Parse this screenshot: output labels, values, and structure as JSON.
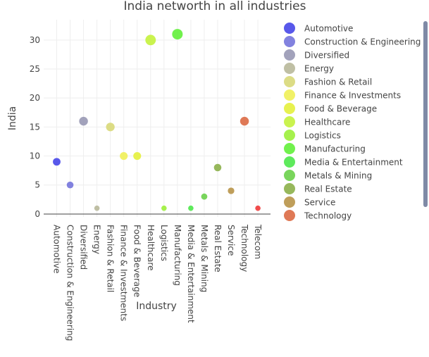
{
  "chart_data": {
    "type": "scatter",
    "title": "India networth in all industries",
    "xlabel": "Industry",
    "ylabel": "India",
    "ylim": [
      -0.5,
      33.5
    ],
    "yticks": [
      0,
      5,
      10,
      15,
      20,
      25,
      30
    ],
    "grid": true,
    "legend_position": "right",
    "categories": [
      "Automotive",
      "Construction & Engineering",
      "Diversified",
      "Energy",
      "Fashion & Retail",
      "Finance & Investments",
      "Food & Beverage",
      "Healthcare",
      "Logistics",
      "Manufacturing",
      "Media & Entertainment",
      "Metals & Mining",
      "Real Estate",
      "Service",
      "Technology",
      "Telecom"
    ],
    "series": [
      {
        "name": "Automotive",
        "x": "Automotive",
        "value": 9,
        "color": "#4646e8"
      },
      {
        "name": "Construction & Engineering",
        "x": "Construction & Engineering",
        "value": 5,
        "color": "#7474dc"
      },
      {
        "name": "Diversified",
        "x": "Diversified",
        "value": 16,
        "color": "#9898b4"
      },
      {
        "name": "Energy",
        "x": "Energy",
        "value": 1,
        "color": "#b8b89a"
      },
      {
        "name": "Fashion & Retail",
        "x": "Fashion & Retail",
        "value": 15,
        "color": "#d8d878"
      },
      {
        "name": "Finance & Investments",
        "x": "Finance & Investments",
        "value": 10,
        "color": "#f0f056"
      },
      {
        "name": "Food & Beverage",
        "x": "Food & Beverage",
        "value": 10,
        "color": "#e4f03c"
      },
      {
        "name": "Healthcare",
        "x": "Healthcare",
        "value": 30,
        "color": "#c4f23c"
      },
      {
        "name": "Logistics",
        "x": "Logistics",
        "value": 1,
        "color": "#9cf03a"
      },
      {
        "name": "Manufacturing",
        "x": "Manufacturing",
        "value": 31,
        "color": "#62f03a"
      },
      {
        "name": "Media & Entertainment",
        "x": "Media & Entertainment",
        "value": 1,
        "color": "#4ce84a"
      },
      {
        "name": "Metals & Mining",
        "x": "Metals & Mining",
        "value": 3,
        "color": "#6ad04a"
      },
      {
        "name": "Real Estate",
        "x": "Real Estate",
        "value": 8,
        "color": "#8cb04a"
      },
      {
        "name": "Service",
        "x": "Service",
        "value": 4,
        "color": "#b89448"
      },
      {
        "name": "Technology",
        "x": "Technology",
        "value": 16,
        "color": "#dc6a44"
      },
      {
        "name": "Telecom",
        "x": "Telecom",
        "value": 1,
        "color": "#f03a3a"
      }
    ]
  }
}
